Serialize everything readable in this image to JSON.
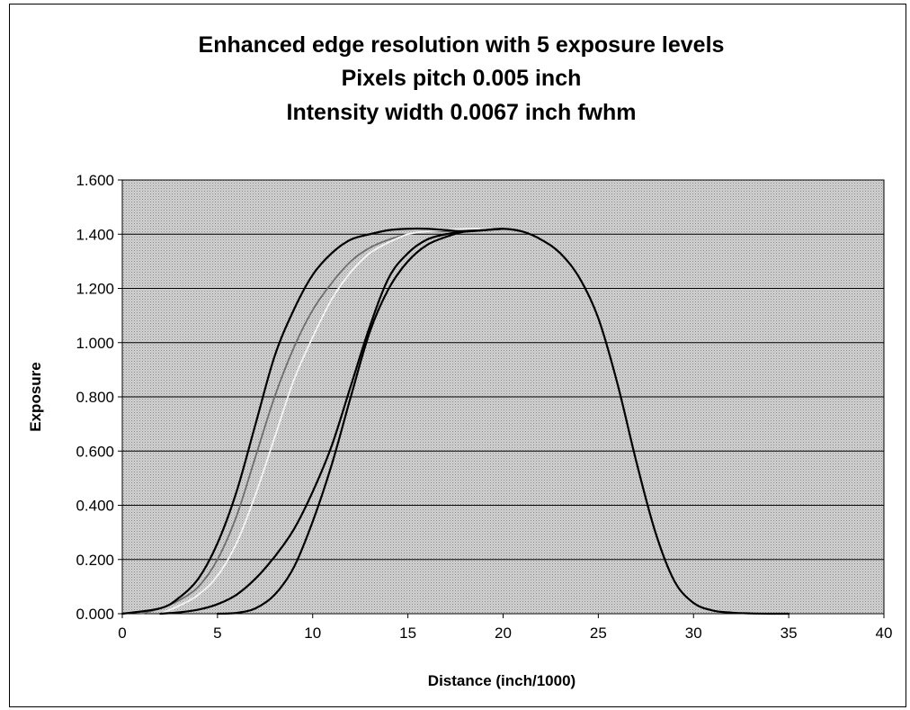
{
  "chart_data": {
    "type": "line",
    "title_lines": [
      "Enhanced edge resolution with 5 exposure levels",
      "Pixels pitch 0.005 inch",
      "Intensity width 0.0067 inch fwhm"
    ],
    "xlabel": "Distance (inch/1000)",
    "ylabel": "Exposure",
    "xlim": [
      0,
      40
    ],
    "ylim": [
      0,
      1.6
    ],
    "x_ticks": [
      "0",
      "5",
      "10",
      "15",
      "20",
      "25",
      "30",
      "35",
      "40"
    ],
    "y_ticks": [
      "0.000",
      "0.200",
      "0.400",
      "0.600",
      "0.800",
      "1.000",
      "1.200",
      "1.400",
      "1.600"
    ],
    "grid": "horizontal",
    "legend": "none",
    "colors": {
      "plot_background": "#c8c8c8",
      "gridline": "#000000",
      "series_dark": "#000000",
      "series_light": "#f4f4f4",
      "series_mid": "#6e6e6e"
    },
    "series": [
      {
        "color": "#000000",
        "x": [
          0,
          2,
          3,
          4,
          5,
          6,
          7,
          8,
          9,
          10,
          11,
          12,
          13,
          14,
          15,
          16,
          17,
          18,
          19,
          20,
          21,
          22,
          23,
          24,
          25,
          26,
          27,
          28,
          29,
          30,
          31,
          32,
          33,
          34,
          35
        ],
        "y": [
          0.0,
          0.02,
          0.06,
          0.13,
          0.26,
          0.45,
          0.7,
          0.95,
          1.12,
          1.25,
          1.33,
          1.38,
          1.4,
          1.415,
          1.42,
          1.42,
          1.415,
          1.41,
          1.415,
          1.42,
          1.41,
          1.38,
          1.33,
          1.24,
          1.09,
          0.85,
          0.56,
          0.3,
          0.12,
          0.04,
          0.012,
          0.004,
          0.001,
          0.0,
          0.0
        ]
      },
      {
        "color": "#6e6e6e",
        "x": [
          1,
          2,
          3,
          4,
          5,
          6,
          7,
          8,
          9,
          10,
          11,
          12,
          13,
          14,
          15,
          16,
          17,
          18,
          19,
          20
        ],
        "y": [
          0.0,
          0.02,
          0.05,
          0.1,
          0.2,
          0.36,
          0.58,
          0.8,
          0.98,
          1.12,
          1.22,
          1.3,
          1.35,
          1.38,
          1.4,
          1.41,
          1.41,
          1.415,
          1.42,
          1.42
        ]
      },
      {
        "color": "#f4f4f4",
        "x": [
          2,
          3,
          4,
          5,
          6,
          7,
          8,
          9,
          10,
          11,
          12,
          13,
          14,
          15,
          16,
          17,
          18,
          19,
          20
        ],
        "y": [
          0.0,
          0.03,
          0.07,
          0.14,
          0.26,
          0.44,
          0.65,
          0.86,
          1.02,
          1.16,
          1.26,
          1.33,
          1.37,
          1.4,
          1.41,
          1.415,
          1.42,
          1.42,
          1.42
        ]
      },
      {
        "color": "#000000",
        "x": [
          2,
          3,
          4,
          5,
          6,
          7,
          8,
          9,
          10,
          11,
          12,
          13,
          14,
          15,
          16,
          17,
          18,
          19,
          20
        ],
        "y": [
          0.0,
          0.005,
          0.015,
          0.035,
          0.07,
          0.13,
          0.21,
          0.31,
          0.45,
          0.62,
          0.84,
          1.06,
          1.24,
          1.33,
          1.38,
          1.4,
          1.41,
          1.415,
          1.42
        ]
      },
      {
        "color": "#000000",
        "x": [
          5,
          6,
          7,
          8,
          9,
          10,
          11,
          12,
          13,
          14,
          15,
          16,
          17,
          18,
          19,
          20
        ],
        "y": [
          0.0,
          0.003,
          0.02,
          0.07,
          0.17,
          0.34,
          0.55,
          0.8,
          1.04,
          1.2,
          1.3,
          1.36,
          1.39,
          1.41,
          1.415,
          1.42
        ]
      }
    ]
  }
}
